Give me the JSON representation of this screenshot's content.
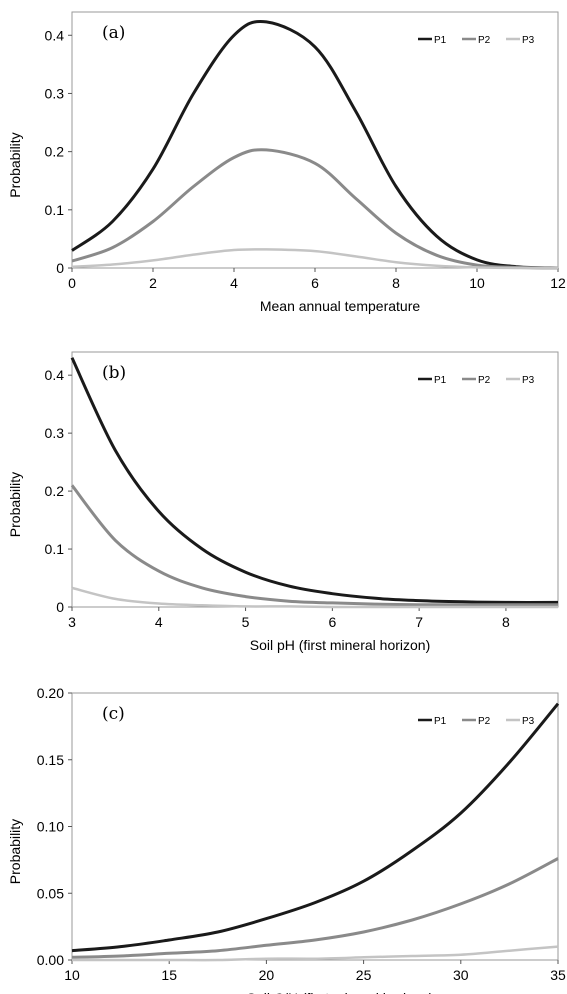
{
  "chart_data": [
    {
      "type": "line",
      "panel_label": "(a)",
      "xlabel": "Mean annual temperature",
      "ylabel": "Probability",
      "xlim": [
        0,
        12
      ],
      "ylim": [
        0,
        0.44
      ],
      "xticks": [
        0,
        2,
        4,
        6,
        8,
        10,
        12
      ],
      "xtick_labels": [
        "0",
        "2",
        "4",
        "6",
        "8",
        "10",
        "12"
      ],
      "yticks": [
        0,
        0.1,
        0.2,
        0.3,
        0.4
      ],
      "ytick_labels": [
        "0",
        "0.1",
        "0.2",
        "0.3",
        "0.4"
      ],
      "legend_position": "top-right",
      "grid": false,
      "series": [
        {
          "name": "P1",
          "color": "#1a1a1a",
          "x": [
            0,
            1,
            2,
            3,
            4,
            4.8,
            6,
            7,
            8,
            9,
            10,
            11,
            12
          ],
          "values": [
            0.03,
            0.08,
            0.17,
            0.3,
            0.4,
            0.423,
            0.38,
            0.27,
            0.14,
            0.055,
            0.014,
            0.002,
            0.0
          ]
        },
        {
          "name": "P2",
          "color": "#8a8a8a",
          "x": [
            0,
            1,
            2,
            3,
            4,
            4.8,
            6,
            7,
            8,
            9,
            10,
            11,
            12
          ],
          "values": [
            0.012,
            0.035,
            0.08,
            0.14,
            0.19,
            0.203,
            0.18,
            0.12,
            0.06,
            0.022,
            0.005,
            0.001,
            0.0
          ]
        },
        {
          "name": "P3",
          "color": "#c4c4c4",
          "x": [
            0,
            1,
            2,
            3,
            4,
            4.8,
            6,
            7,
            8,
            9,
            10,
            11,
            12
          ],
          "values": [
            0.002,
            0.006,
            0.013,
            0.023,
            0.031,
            0.032,
            0.029,
            0.02,
            0.01,
            0.004,
            0.001,
            0.0,
            0.0
          ]
        }
      ]
    },
    {
      "type": "line",
      "panel_label": "(b)",
      "xlabel": "Soil pH (first mineral horizon)",
      "ylabel": "Probability",
      "xlim": [
        3,
        8.6
      ],
      "ylim": [
        0,
        0.44
      ],
      "xticks": [
        3,
        4,
        5,
        6,
        7,
        8
      ],
      "xtick_labels": [
        "3",
        "4",
        "5",
        "6",
        "7",
        "8"
      ],
      "yticks": [
        0,
        0.1,
        0.2,
        0.3,
        0.4
      ],
      "ytick_labels": [
        "0",
        "0.1",
        "0.2",
        "0.3",
        "0.4"
      ],
      "legend_position": "top-right",
      "grid": false,
      "series": [
        {
          "name": "P1",
          "color": "#1a1a1a",
          "x": [
            3,
            3.5,
            4,
            4.5,
            5,
            5.5,
            6,
            6.5,
            7,
            7.5,
            8,
            8.6
          ],
          "values": [
            0.43,
            0.27,
            0.165,
            0.1,
            0.06,
            0.036,
            0.023,
            0.015,
            0.011,
            0.009,
            0.008,
            0.008
          ]
        },
        {
          "name": "P2",
          "color": "#8a8a8a",
          "x": [
            3,
            3.5,
            4,
            4.5,
            5,
            5.5,
            6,
            6.5,
            7,
            7.5,
            8,
            8.6
          ],
          "values": [
            0.21,
            0.115,
            0.062,
            0.033,
            0.018,
            0.01,
            0.007,
            0.005,
            0.004,
            0.004,
            0.004,
            0.004
          ]
        },
        {
          "name": "P3",
          "color": "#c4c4c4",
          "x": [
            3,
            3.5,
            4,
            4.5,
            5,
            5.5,
            6,
            6.5,
            7,
            7.5,
            8,
            8.6
          ],
          "values": [
            0.033,
            0.014,
            0.006,
            0.003,
            0.001,
            0.001,
            0.0,
            0.0,
            0.0,
            0.0,
            0.0,
            0.0
          ]
        }
      ]
    },
    {
      "type": "line",
      "panel_label": "(c)",
      "xlabel": "Soil C/N (first mineral horizon)",
      "ylabel": "Probability",
      "xlim": [
        10,
        35
      ],
      "ylim": [
        0,
        0.2
      ],
      "xticks": [
        10,
        15,
        20,
        25,
        30,
        35
      ],
      "xtick_labels": [
        "10",
        "15",
        "20",
        "25",
        "30",
        "35"
      ],
      "yticks": [
        0,
        0.05,
        0.1,
        0.15,
        0.2
      ],
      "ytick_labels": [
        "0.00",
        "0.05",
        "0.10",
        "0.15",
        "0.20"
      ],
      "legend_position": "top-right",
      "grid": false,
      "series": [
        {
          "name": "P1",
          "color": "#1a1a1a",
          "x": [
            10,
            12.5,
            15,
            17.5,
            20,
            22.5,
            25,
            27.5,
            30,
            32.5,
            35
          ],
          "values": [
            0.007,
            0.01,
            0.015,
            0.021,
            0.031,
            0.043,
            0.059,
            0.082,
            0.11,
            0.148,
            0.192
          ]
        },
        {
          "name": "P2",
          "color": "#8a8a8a",
          "x": [
            10,
            12.5,
            15,
            17.5,
            20,
            22.5,
            25,
            27.5,
            30,
            32.5,
            35
          ],
          "values": [
            0.002,
            0.003,
            0.005,
            0.007,
            0.011,
            0.015,
            0.021,
            0.03,
            0.042,
            0.057,
            0.076
          ]
        },
        {
          "name": "P3",
          "color": "#c4c4c4",
          "x": [
            10,
            12.5,
            15,
            17.5,
            20,
            22.5,
            25,
            27.5,
            30,
            32.5,
            35
          ],
          "values": [
            0.0,
            0.0,
            0.0,
            0.0,
            0.001,
            0.001,
            0.002,
            0.003,
            0.004,
            0.007,
            0.01
          ]
        }
      ]
    }
  ]
}
